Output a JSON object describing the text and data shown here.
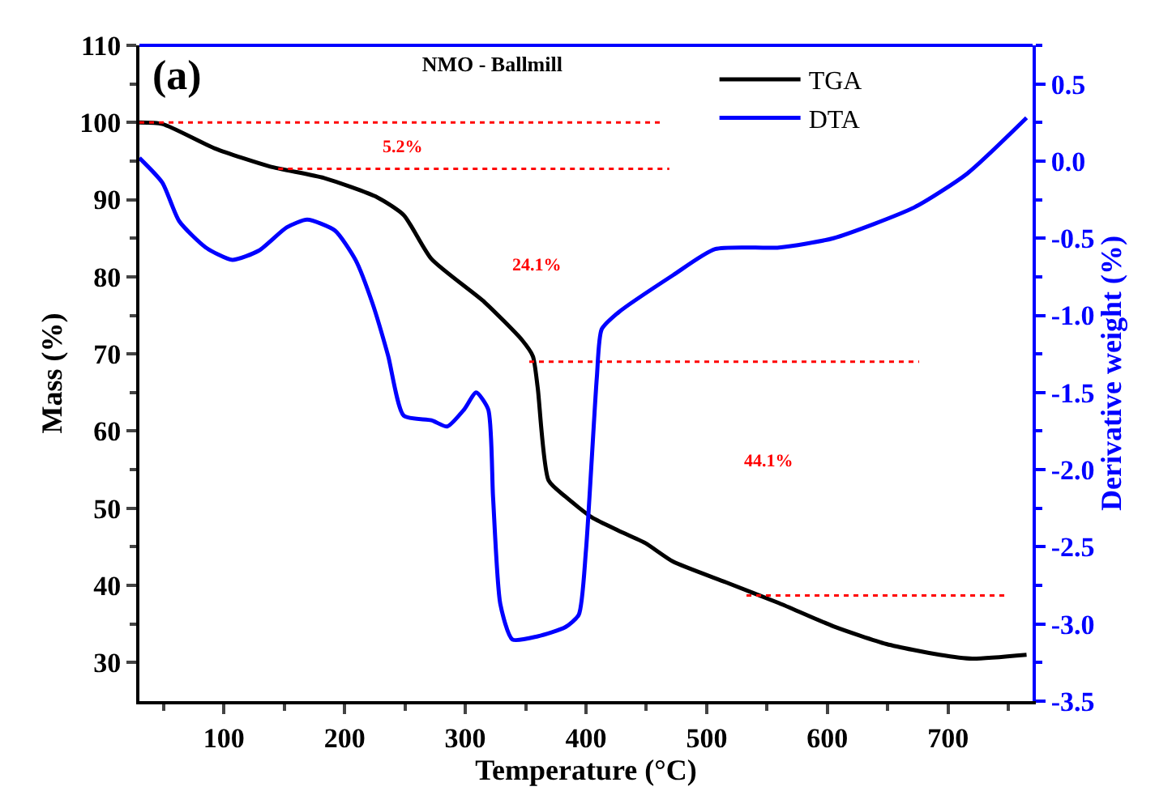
{
  "chart_data": {
    "type": "line",
    "title": "NMO - Ballmill",
    "xlabel": "Temperature (°C)",
    "ylabel": "Mass (%)",
    "y2label": "Derivative weight (%)",
    "xlim": [
      30,
      770
    ],
    "xticks": [
      100,
      200,
      300,
      400,
      500,
      600,
      700
    ],
    "ylim": [
      25,
      110
    ],
    "yticks": [
      30,
      40,
      50,
      60,
      70,
      80,
      90,
      100,
      110
    ],
    "y2lim": [
      -3.5,
      0.75
    ],
    "y2ticks": [
      -3.5,
      {
        "value": -3,
        "label": "-3.0"
      },
      -2.5,
      {
        "value": -2,
        "label": "-2.0"
      },
      -1.5,
      {
        "value": -1,
        "label": "-1.0"
      },
      -0.5,
      {
        "value": 0,
        "label": "0.0"
      },
      0.5
    ],
    "legend": "top right",
    "marker": "none",
    "annotations": [
      "(a)",
      "5.2%",
      "24.1%",
      "44.1%"
    ],
    "series": [
      {
        "name": "TGA",
        "color": "#000000",
        "x": [
          30,
          49,
          93,
          138,
          183,
          227,
          249,
          272,
          316,
          347,
          356,
          360,
          369,
          383,
          405,
          427,
          449,
          472,
          516,
          560,
          605,
          649,
          693,
          720,
          765
        ],
        "values": [
          100,
          99.8,
          96.6,
          94.3,
          92.8,
          90.3,
          88,
          82.3,
          76.7,
          71.8,
          69.7,
          65.6,
          53.6,
          51.5,
          48.8,
          47.1,
          45.5,
          43.1,
          40.4,
          37.7,
          34.7,
          32.4,
          31,
          30.5,
          31
        ]
      },
      {
        "name": "DTA",
        "color": "#0000ff",
        "axis": "y2",
        "x": [
          30,
          49,
          63,
          85,
          107,
          129,
          152,
          169,
          192,
          209,
          223,
          236,
          249,
          272,
          285,
          299,
          309,
          319,
          323,
          329,
          339,
          360,
          383,
          394,
          400,
          409,
          413,
          427,
          472,
          507,
          560,
          605,
          672,
          716,
          765
        ],
        "values": [
          0.02,
          -0.14,
          -0.39,
          -0.56,
          -0.64,
          -0.58,
          -0.43,
          -0.38,
          -0.45,
          -0.64,
          -0.92,
          -1.26,
          -1.65,
          -1.68,
          -1.72,
          -1.61,
          -1.5,
          -1.61,
          -2.18,
          -2.87,
          -3.1,
          -3.08,
          -3.02,
          -2.94,
          -2.52,
          -1.4,
          -1.09,
          -0.98,
          -0.74,
          -0.57,
          -0.56,
          -0.5,
          -0.3,
          -0.08,
          0.28
        ]
      },
      {
        "color": "#ff0000",
        "line_style": "dotted",
        "x": [
          30,
          465
        ],
        "values": [
          100,
          100
        ]
      },
      {
        "color": "#ff0000",
        "line_style": "dotted",
        "x": [
          145,
          469
        ],
        "values": [
          94,
          94
        ]
      },
      {
        "color": "#ff0000",
        "line_style": "dotted",
        "x": [
          353,
          676
        ],
        "values": [
          69,
          69
        ]
      },
      {
        "color": "#ff0000",
        "line_style": "dotted",
        "x": [
          533,
          747
        ],
        "values": [
          38.7,
          38.7
        ]
      }
    ]
  }
}
